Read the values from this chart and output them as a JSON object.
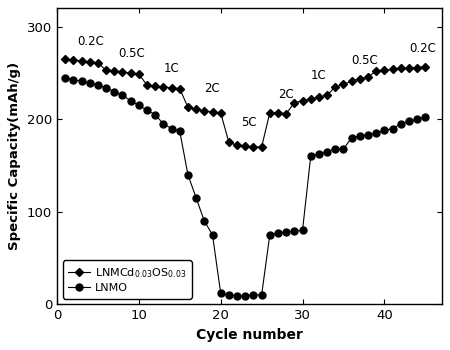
{
  "lnmcd_x": [
    1,
    2,
    3,
    4,
    5,
    6,
    7,
    8,
    9,
    10,
    11,
    12,
    13,
    14,
    15,
    16,
    17,
    18,
    19,
    20,
    21,
    22,
    23,
    24,
    25,
    26,
    27,
    28,
    29,
    30,
    31,
    32,
    33,
    34,
    35,
    36,
    37,
    38,
    39,
    40,
    41,
    42,
    43,
    44,
    45
  ],
  "lnmcd_y": [
    265,
    264,
    263,
    262,
    261,
    253,
    252,
    251,
    250,
    249,
    237,
    236,
    235,
    234,
    233,
    213,
    211,
    209,
    208,
    207,
    175,
    172,
    171,
    170,
    170,
    207,
    207,
    206,
    218,
    220,
    222,
    224,
    226,
    235,
    238,
    241,
    244,
    246,
    252,
    253,
    254,
    255,
    255,
    256,
    257
  ],
  "lnmo_x": [
    1,
    2,
    3,
    4,
    5,
    6,
    7,
    8,
    9,
    10,
    11,
    12,
    13,
    14,
    15,
    16,
    17,
    18,
    19,
    20,
    21,
    22,
    23,
    24,
    25,
    26,
    27,
    28,
    29,
    30,
    31,
    32,
    33,
    34,
    35,
    36,
    37,
    38,
    39,
    40,
    41,
    42,
    43,
    44,
    45
  ],
  "lnmo_y": [
    245,
    243,
    241,
    239,
    237,
    234,
    230,
    226,
    220,
    215,
    210,
    205,
    195,
    190,
    187,
    140,
    115,
    90,
    75,
    12,
    10,
    9,
    9,
    10,
    10,
    75,
    77,
    78,
    79,
    80,
    160,
    163,
    165,
    168,
    168,
    180,
    182,
    183,
    185,
    188,
    190,
    195,
    198,
    200,
    202
  ],
  "rate_labels": [
    "0.2C",
    "0.5C",
    "1C",
    "2C",
    "5C",
    "2C",
    "1C",
    "0.5C",
    "0.2C"
  ],
  "rate_x_pos": [
    2.5,
    7.5,
    13,
    18,
    22.5,
    27,
    31,
    36,
    43
  ],
  "rate_y_pos": [
    277,
    264,
    248,
    226,
    190,
    220,
    240,
    257,
    270
  ],
  "xlabel": "Cycle number",
  "ylabel": "Specific Capacity(mAh/g)",
  "xlim": [
    0,
    47
  ],
  "ylim": [
    0,
    320
  ],
  "yticks": [
    0,
    100,
    200,
    300
  ],
  "xticks": [
    0,
    10,
    20,
    30,
    40
  ],
  "legend_labels": [
    "LNMCd$_{0.03}$OS$_{0.03}$",
    "LNMO"
  ],
  "line_color": "#000000",
  "bg_color": "#ffffff",
  "figwidth": 4.5,
  "figheight": 3.5
}
